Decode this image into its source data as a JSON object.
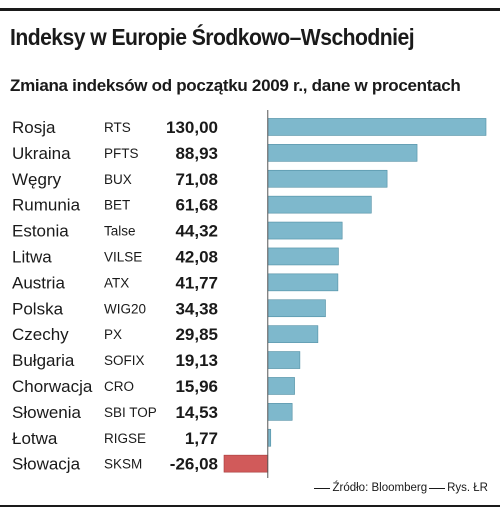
{
  "title": "Indeksy w Europie Środkowo–Wschodniej",
  "subtitle": "Zmiana indeksów od początku 2009 r., dane w procentach",
  "source": "Źródło: Bloomberg",
  "credit": "Rys. ŁR",
  "colors": {
    "positive": "#7eb8cc",
    "negative": "#d15a5a",
    "text": "#1a1a1a"
  },
  "chart_data": {
    "type": "bar",
    "orientation": "horizontal",
    "categories": [
      "Rosja",
      "Ukraina",
      "Węgry",
      "Rumunia",
      "Estonia",
      "Litwa",
      "Austria",
      "Polska",
      "Czechy",
      "Bułgaria",
      "Chorwacja",
      "Słowenia",
      "Łotwa",
      "Słowacja"
    ],
    "index_names": [
      "RTS",
      "PFTS",
      "BUX",
      "BET",
      "Talse",
      "VILSE",
      "ATX",
      "WIG20",
      "PX",
      "SOFIX",
      "CRO",
      "SBI TOP",
      "RIGSE",
      "SKSM"
    ],
    "values": [
      130.0,
      88.93,
      71.08,
      61.68,
      44.32,
      42.08,
      41.77,
      34.38,
      29.85,
      19.13,
      15.96,
      14.53,
      1.77,
      -26.08
    ],
    "value_labels": [
      "130,00",
      "88,93",
      "71,08",
      "61,68",
      "44,32",
      "42,08",
      "41,77",
      "34,38",
      "29,85",
      "19,13",
      "15,96",
      "14,53",
      "1,77",
      "-26,08"
    ],
    "xlim": [
      -26.08,
      130.0
    ],
    "grid": false,
    "title": "Indeksy w Europie Środkowo–Wschodniej",
    "subtitle": "Zmiana indeksów od początku 2009 r., dane w procentach"
  }
}
